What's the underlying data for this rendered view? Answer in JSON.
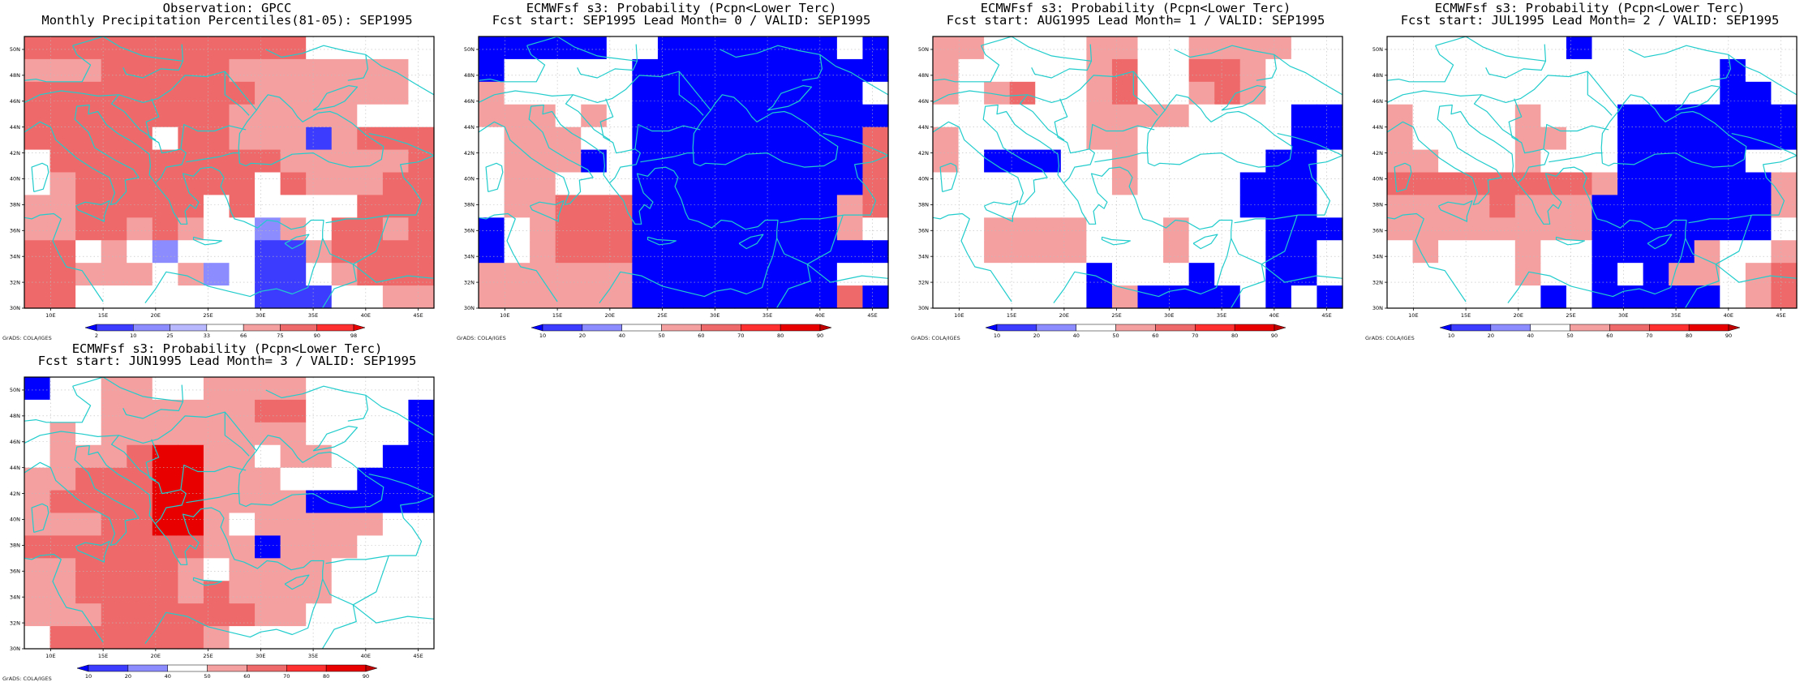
{
  "credit": "GrADS: COLA/IGES",
  "colors": {
    "blue_dark": "#0000ff",
    "blue_mid": "#3c3cff",
    "blue_light": "#8c8cff",
    "pink": "#f5a0a0",
    "red_light": "#ee6a6a",
    "red_mid": "#ff3030",
    "red_dark": "#e80000",
    "land_white": "#ffffff",
    "coast": "#22cccc",
    "grid": "#bbbbbb"
  },
  "axes": {
    "lat_labels": [
      "50N",
      "48N",
      "46N",
      "44N",
      "42N",
      "40N",
      "38N",
      "36N",
      "34N",
      "32N",
      "30N"
    ],
    "lon_labels": [
      "10E",
      "15E",
      "20E",
      "25E",
      "30E",
      "35E",
      "40E",
      "45E"
    ],
    "lat_range": [
      30,
      51
    ],
    "lon_range": [
      7.5,
      46.5
    ]
  },
  "panels": [
    {
      "title1": "Observation: GPCC",
      "title2": "Monthly Precipitation Percentiles(81-05): SEP1995",
      "colorbar": {
        "labels": [
          "2",
          "10",
          "25",
          "33",
          "66",
          "75",
          "90",
          "98"
        ],
        "colors": [
          "#0000ff",
          "#3c3cff",
          "#8c8cff",
          "#b8b8ff",
          "#ffffff",
          "#f5a0a0",
          "#ee6a6a",
          "#ff3030",
          "#e80000"
        ]
      },
      "grid": [
        "RRRRRRRRRRRWWWWW",
        "PPPRRRRRPPPPPPPW",
        "RRRRRRRRRPPPPPPW",
        "RRRRRRRRPPPPPWWW",
        "RRRRRWRRPPPBPRRR",
        "WRRRRRRRRRPPPPPR",
        "WPRRRRRRRWRPPPRR",
        "PPRRRRRWRWWWWRRR",
        "PPRRPRPWWLPWRRPR",
        "RRWPWLWWWBBPRRRR",
        "RRPPPWPLWBBWPRRR",
        "RRWWWWWWWBBBWWPP"
      ]
    },
    {
      "title1": "ECMWFsf s3: Probability (Pcpn<Lower Terc)",
      "title2": "Fcst start: SEP1995   Lead Month= 0 / VALID: SEP1995",
      "colorbar": {
        "labels": [
          "10",
          "20",
          "40",
          "50",
          "60",
          "70",
          "80",
          "90"
        ],
        "colors": [
          "#0000ff",
          "#3c3cff",
          "#8c8cff",
          "#ffffff",
          "#f5a0a0",
          "#ee6a6a",
          "#ff3030",
          "#e80000",
          "#c00000"
        ]
      },
      "grid": [
        "BBBBBWWBBBBBBBWB",
        "BWWWWWBBBBBBBBBB",
        "PWWWWWBBBBBBBBBW",
        "PPPWPWBBBBBBBBBB",
        "WPPPWWBBBBBBBBBR",
        "WPPPBWBBBBBBBBBR",
        "WPPWWWBBBBBBBBBR",
        "WPPRRRBBBBBBBBPR",
        "BWPRRRBBBBBBBBPW",
        "BWPRRRBBBBBBBBBB",
        "PPPPPPBBBBBBBBWW",
        "PPPPPPBBBBBBBBRB"
      ]
    },
    {
      "title1": "ECMWFsf s3: Probability (Pcpn<Lower Terc)",
      "title2": "Fcst start: AUG1995   Lead Month= 1 / VALID: SEP1995",
      "colorbar": {
        "labels": [
          "10",
          "20",
          "40",
          "50",
          "60",
          "70",
          "80",
          "90"
        ],
        "colors": [
          "#0000ff",
          "#3c3cff",
          "#8c8cff",
          "#ffffff",
          "#f5a0a0",
          "#ee6a6a",
          "#ff3030",
          "#e80000",
          "#c00000"
        ]
      },
      "grid": [
        "PPWWWWPPWWPPPPWW",
        "PWWWWWPRWWRRPWWW",
        "PWPRWWPRWWPRPWWW",
        "WWWWWWPPPPWWWWBB",
        "PWWWWWPPWWWWWWBB",
        "PWBBBWWPWWWWWBBW",
        "WWWWWWWPWWWWBBBW",
        "WWWWWWWWWWWWBBBW",
        "WWPPPPWWWPWWWBBB",
        "WWPPPPWWWPWWWBBW",
        "WWWWWWBWWWBWWBBW",
        "WWWWWWBPBBBBWBWB"
      ]
    },
    {
      "title1": "ECMWFsf s3: Probability (Pcpn<Lower Terc)",
      "title2": "Fcst start: JUL1995   Lead Month= 2 / VALID: SEP1995",
      "colorbar": {
        "labels": [
          "10",
          "20",
          "40",
          "50",
          "60",
          "70",
          "80",
          "90"
        ],
        "colors": [
          "#0000ff",
          "#3c3cff",
          "#8c8cff",
          "#ffffff",
          "#f5a0a0",
          "#ee6a6a",
          "#ff3030",
          "#e80000",
          "#c00000"
        ]
      },
      "grid": [
        "WWWWWWWBWWWWWWWW",
        "WWWWWWWWWWWWWBWW",
        "WWWWWWWWWWWWWBBW",
        "PWWWWPWWWBBBBBBB",
        "PWWWWPPWWBBBBBBB",
        "PPWWWPWWWBBBBBWW",
        "RRRRRRRRPBBBBBBP",
        "PPPPRPPPBBBBBBBP",
        "PPPPPPPPBBBBBBBW",
        "WPWWWPWWBBBBPWWP",
        "WWWWWPWWBWBPPWPR",
        "WWWWWWBWBBBBBWPR"
      ]
    },
    {
      "title1": "ECMWFsf s3: Probability (Pcpn<Lower Terc)",
      "title2": "Fcst start: JUN1995   Lead Month= 3 / VALID: SEP1995",
      "colorbar": {
        "labels": [
          "10",
          "20",
          "40",
          "50",
          "60",
          "70",
          "80",
          "90"
        ],
        "colors": [
          "#0000ff",
          "#3c3cff",
          "#8c8cff",
          "#ffffff",
          "#f5a0a0",
          "#ee6a6a",
          "#ff3030",
          "#e80000",
          "#c00000"
        ]
      },
      "grid": [
        "BWWPPWWPPPPWWWWW",
        "WWWPPPPPPRRWWWWB",
        "WPWPPPPPPPPWWWWB",
        "WPPPRDDPPWPPWWBB",
        "PPRRRDDPPPWWWBBB",
        "PRRRRDDPPPPBBBBB",
        "PPPRRDDPWPPPPPWW",
        "RRRRRRRPPBPPPWWW",
        "PPRRRRPWPPPPWWWW",
        "PPRRRRPRPPPPWWWW",
        "PPPRRRRRRPPWWWWW",
        "WRRRRRRPWWWWWWWW"
      ]
    }
  ]
}
